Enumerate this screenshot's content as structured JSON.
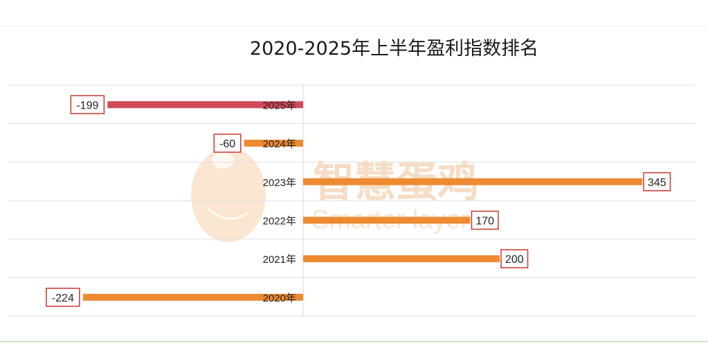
{
  "chart_data": {
    "type": "bar",
    "orientation": "horizontal",
    "title": "2020-2025年上半年盈利指数排名",
    "categories": [
      "2025年",
      "2024年",
      "2023年",
      "2022年",
      "2021年",
      "2020年"
    ],
    "values": [
      -199,
      -60,
      345,
      170,
      200,
      -224
    ],
    "value_labels": [
      "-199",
      "-60",
      "345",
      "170",
      "200",
      "-224"
    ],
    "bar_colors": [
      "#d04a5a",
      "#ee8a32",
      "#ee8a32",
      "#ee8a32",
      "#ee8a32",
      "#ee8a32"
    ],
    "xlim": [
      -250,
      390
    ],
    "grid": true,
    "legend": "none"
  },
  "watermark": {
    "text_cn": "智慧蛋鸡",
    "text_en": "Smarter layer"
  },
  "colors": {
    "grid": "#dedede",
    "label_box_border": "#c8382e",
    "text": "#222222",
    "watermark": "#f6dcc4"
  }
}
